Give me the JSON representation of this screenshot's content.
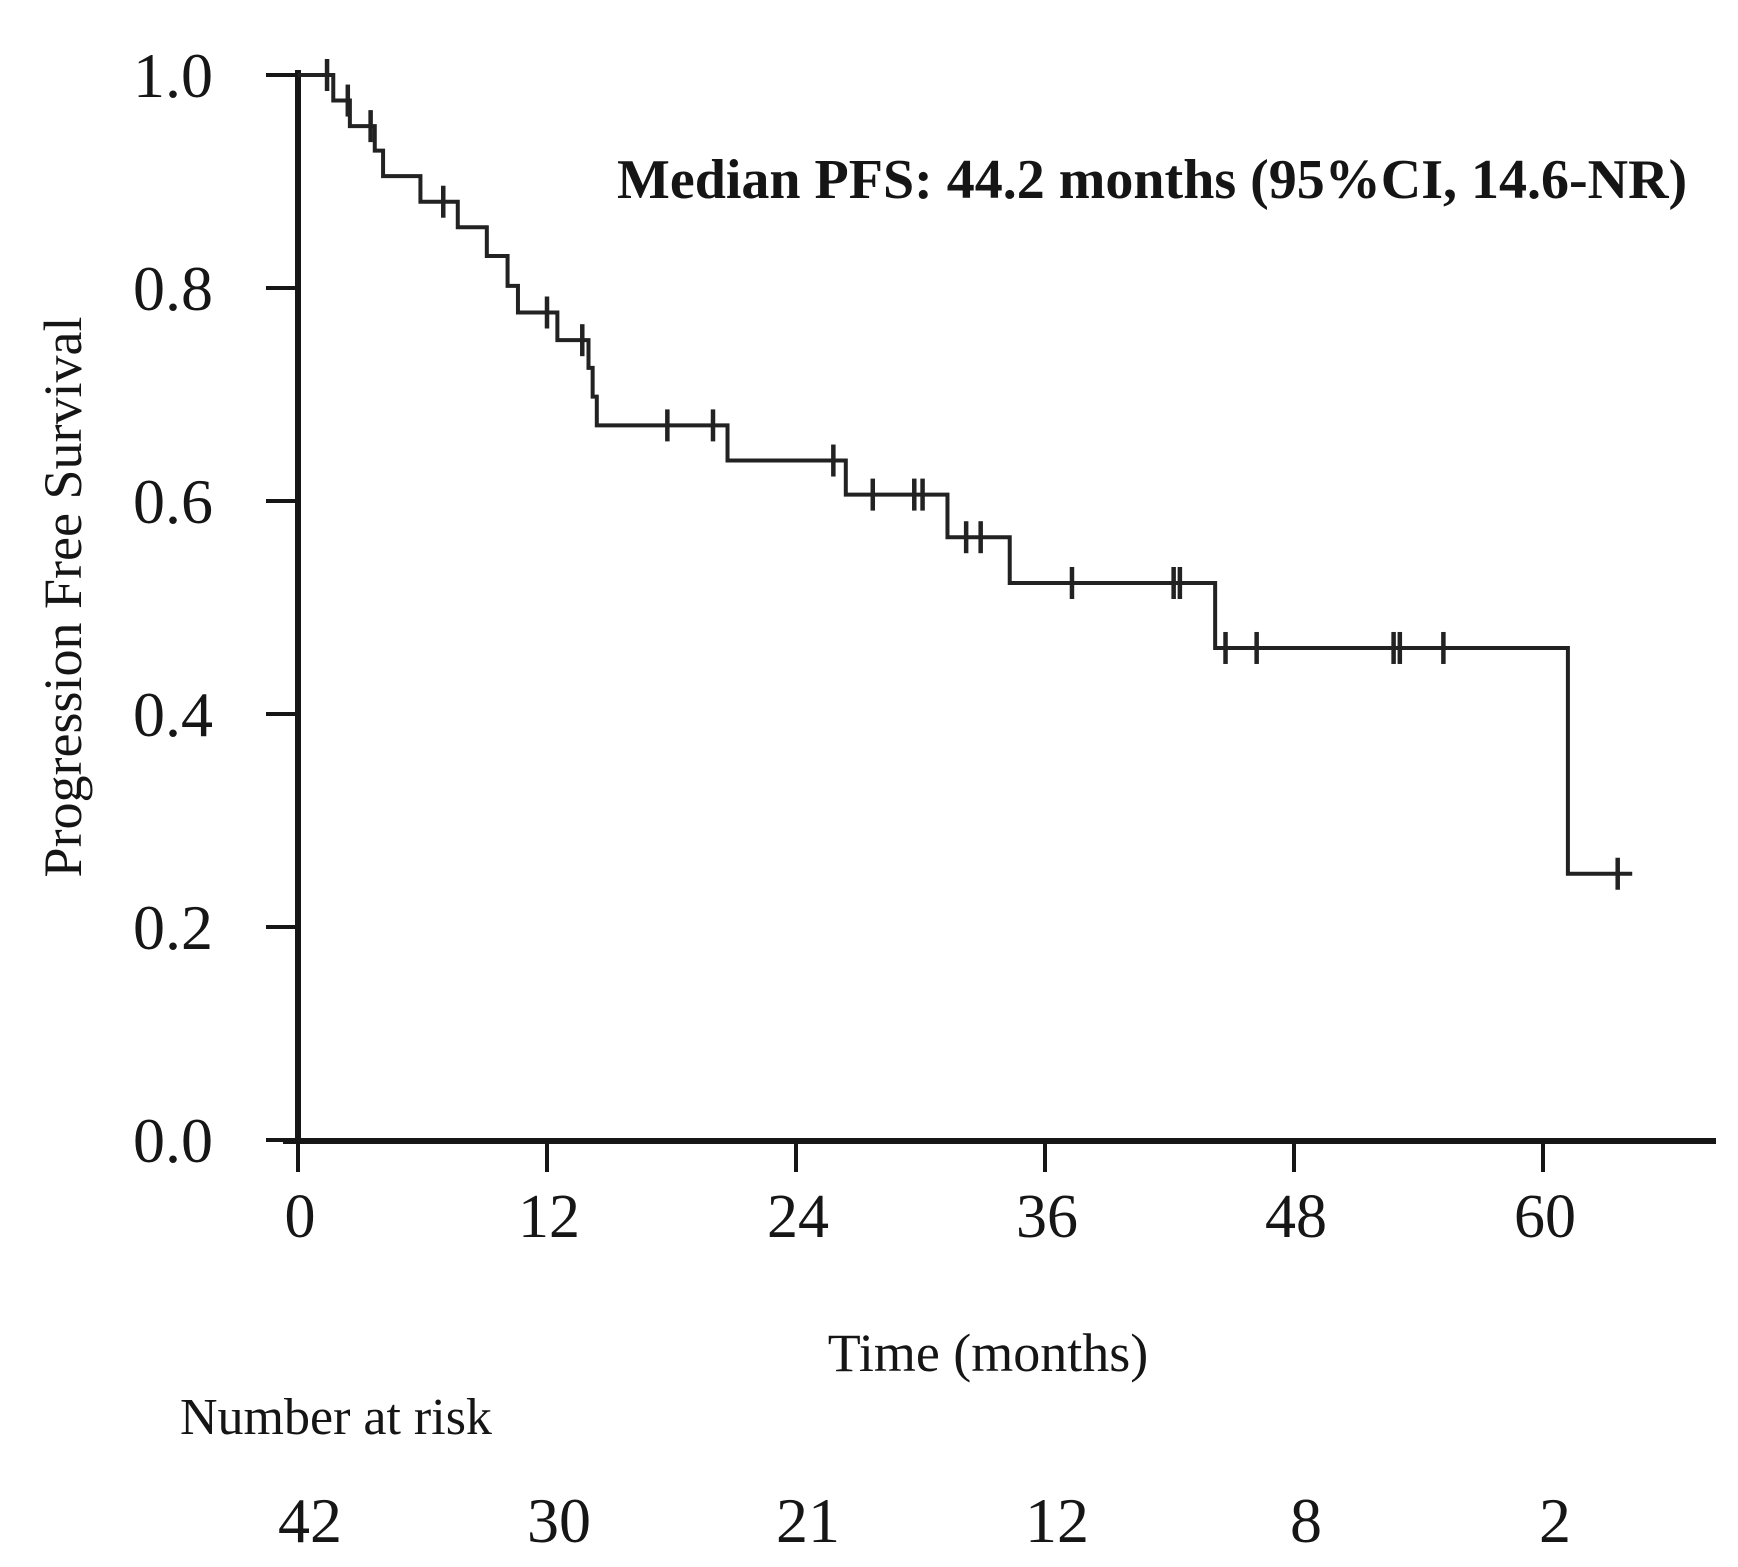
{
  "figure": {
    "background": "#ffffff",
    "ink_color": "#161616"
  },
  "chart_data": {
    "type": "line",
    "subtype": "kaplan-meier-step",
    "title": "",
    "annotation": "Median PFS: 44.2 months (95%CI, 14.6-NR)",
    "xlabel": "Time (months)",
    "ylabel": "Progression Free Survival",
    "xlim": [
      0,
      68
    ],
    "ylim": [
      0.0,
      1.0
    ],
    "grid": false,
    "legend": "none",
    "line_color": "#222222",
    "x_ticks": [
      {
        "v": 0,
        "label": "0"
      },
      {
        "v": 12,
        "label": "12"
      },
      {
        "v": 24,
        "label": "24"
      },
      {
        "v": 36,
        "label": "36"
      },
      {
        "v": 48,
        "label": "48"
      },
      {
        "v": 60,
        "label": "60"
      }
    ],
    "y_ticks": [
      {
        "v": 0.0,
        "label": "0.0"
      },
      {
        "v": 0.2,
        "label": "0.2"
      },
      {
        "v": 0.4,
        "label": "0.4"
      },
      {
        "v": 0.6,
        "label": "0.6"
      },
      {
        "v": 0.8,
        "label": "0.8"
      },
      {
        "v": 1.0,
        "label": "1.0"
      }
    ],
    "series": [
      {
        "name": "Progression Free Survival",
        "median_months": 44.2,
        "ci_95": "14.6-NR",
        "end_time": 64.3,
        "steps": [
          {
            "t": 0.0,
            "s": 1.0
          },
          {
            "t": 1.7,
            "s": 0.976
          },
          {
            "t": 2.5,
            "s": 0.952
          },
          {
            "t": 3.7,
            "s": 0.929
          },
          {
            "t": 4.1,
            "s": 0.905
          },
          {
            "t": 5.9,
            "s": 0.881
          },
          {
            "t": 7.7,
            "s": 0.857
          },
          {
            "t": 9.1,
            "s": 0.83
          },
          {
            "t": 10.1,
            "s": 0.802
          },
          {
            "t": 10.6,
            "s": 0.777
          },
          {
            "t": 12.5,
            "s": 0.751
          },
          {
            "t": 14.0,
            "s": 0.725
          },
          {
            "t": 14.2,
            "s": 0.698
          },
          {
            "t": 14.4,
            "s": 0.671
          },
          {
            "t": 20.7,
            "s": 0.638
          },
          {
            "t": 26.4,
            "s": 0.606
          },
          {
            "t": 31.3,
            "s": 0.566
          },
          {
            "t": 34.3,
            "s": 0.523
          },
          {
            "t": 44.2,
            "s": 0.462
          },
          {
            "t": 61.2,
            "s": 0.25
          }
        ],
        "censors": [
          {
            "t": 1.4,
            "s": 1.0
          },
          {
            "t": 2.4,
            "s": 0.976
          },
          {
            "t": 3.5,
            "s": 0.952
          },
          {
            "t": 7.0,
            "s": 0.881
          },
          {
            "t": 12.0,
            "s": 0.777
          },
          {
            "t": 13.7,
            "s": 0.751
          },
          {
            "t": 17.8,
            "s": 0.671
          },
          {
            "t": 20.0,
            "s": 0.671
          },
          {
            "t": 25.8,
            "s": 0.638
          },
          {
            "t": 27.7,
            "s": 0.606
          },
          {
            "t": 29.7,
            "s": 0.606
          },
          {
            "t": 30.1,
            "s": 0.606
          },
          {
            "t": 32.2,
            "s": 0.566
          },
          {
            "t": 32.9,
            "s": 0.566
          },
          {
            "t": 37.3,
            "s": 0.523
          },
          {
            "t": 42.2,
            "s": 0.523
          },
          {
            "t": 42.5,
            "s": 0.523
          },
          {
            "t": 44.7,
            "s": 0.462
          },
          {
            "t": 46.2,
            "s": 0.462
          },
          {
            "t": 52.8,
            "s": 0.462
          },
          {
            "t": 53.1,
            "s": 0.462
          },
          {
            "t": 55.2,
            "s": 0.462
          },
          {
            "t": 63.6,
            "s": 0.25
          }
        ]
      }
    ],
    "number_at_risk": {
      "label": "Number at risk",
      "entries": [
        {
          "time": 0,
          "count": "42"
        },
        {
          "time": 12,
          "count": "30"
        },
        {
          "time": 24,
          "count": "21"
        },
        {
          "time": 36,
          "count": "12"
        },
        {
          "time": 48,
          "count": "8"
        },
        {
          "time": 60,
          "count": "2"
        }
      ]
    }
  }
}
